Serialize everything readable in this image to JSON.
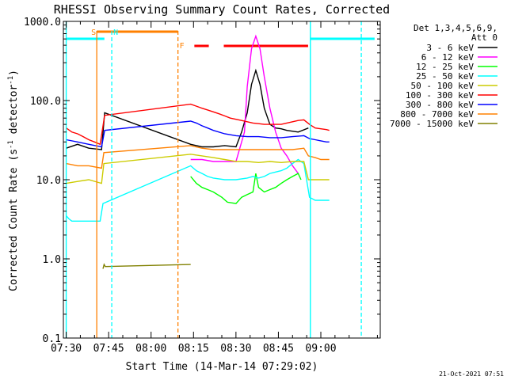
{
  "chart_data": {
    "type": "line",
    "title": "RHESSI Observing Summary Count Rates, Corrected",
    "xlabel": "Start Time (14-Mar-14 07:29:02)",
    "ylabel_main": "Corrected Count Rate (s",
    "ylabel_sup1": "-1",
    "ylabel_mid": " detector",
    "ylabel_sup2": "-1",
    "ylabel_end": ")",
    "footer": "21-Oct-2021 07:51",
    "y_scale": "log",
    "ylim": [
      0.1,
      1000
    ],
    "xlim_minutes": [
      -1,
      111
    ],
    "grid": false,
    "legend_placement": "right",
    "legend_header": [
      "Det 1,3,4,5,6,9,",
      "Att 0"
    ],
    "x_ticks": [
      {
        "m": 0,
        "label": "07:30"
      },
      {
        "m": 15,
        "label": "07:45"
      },
      {
        "m": 30,
        "label": "08:00"
      },
      {
        "m": 45,
        "label": "08:15"
      },
      {
        "m": 60,
        "label": "08:30"
      },
      {
        "m": 75,
        "label": "08:45"
      },
      {
        "m": 90,
        "label": "09:00"
      }
    ],
    "y_ticks": [
      {
        "v": 0.1,
        "label": "0.1"
      },
      {
        "v": 1,
        "label": "1.0"
      },
      {
        "v": 10,
        "label": "10.0"
      },
      {
        "v": 100,
        "label": "100.0"
      },
      {
        "v": 1000,
        "label": "1000.0"
      }
    ],
    "series": [
      {
        "name": "3 - 6 keV",
        "color": "#000000",
        "x": [
          0,
          4,
          8,
          12.5,
          13.6,
          44,
          48,
          52,
          56,
          60,
          62,
          64,
          65.5,
          67,
          68.5,
          70,
          72,
          74,
          76,
          78,
          82,
          85.6
        ],
        "y": [
          25,
          28,
          25,
          24,
          70,
          28,
          26,
          26,
          27,
          26,
          40,
          70,
          160,
          240,
          160,
          80,
          50,
          45,
          44,
          42,
          40,
          45
        ]
      },
      {
        "name": "6 - 12 keV",
        "color": "#ff00ff",
        "x": [
          44,
          48,
          52,
          56,
          60,
          63,
          64,
          65.5,
          67,
          68.5,
          70,
          72,
          74,
          76,
          78,
          80,
          82
        ],
        "y": [
          18,
          18,
          17,
          17,
          17,
          40,
          150,
          450,
          650,
          450,
          200,
          80,
          40,
          25,
          20,
          15,
          12
        ]
      },
      {
        "name": "12 - 25 keV",
        "color": "#00ff00",
        "x": [
          44,
          46,
          48,
          50,
          52,
          55,
          57,
          60,
          62,
          64,
          66,
          67,
          68,
          70,
          72,
          74,
          76,
          78,
          80,
          82,
          83
        ],
        "y": [
          11,
          9,
          8,
          7.5,
          7,
          6,
          5.2,
          5,
          6,
          6.5,
          7,
          12,
          8,
          7,
          7.5,
          8,
          9,
          10,
          11,
          12,
          10
        ]
      },
      {
        "name": "25 - 50 keV",
        "color": "#00ffff",
        "x": [
          0,
          1,
          2,
          4,
          6,
          8,
          10,
          12,
          13,
          44,
          46,
          48,
          50,
          52,
          56,
          60,
          64,
          66,
          68,
          70,
          72,
          74,
          76,
          78,
          80,
          82,
          84,
          86,
          88,
          90,
          92,
          93
        ],
        "y": [
          3.5,
          3.2,
          3.0,
          3.0,
          3.0,
          3.0,
          3.0,
          3.0,
          5,
          15,
          13,
          12,
          11,
          10.5,
          10,
          10,
          10.5,
          11,
          10.5,
          11,
          12,
          12.5,
          13,
          14,
          16,
          18,
          16,
          6,
          5.5,
          5.5,
          5.5,
          5.5
        ]
      },
      {
        "name": "50 - 100 keV",
        "color": "#cccc00",
        "x": [
          0,
          4,
          8,
          12.5,
          13.3,
          44,
          48,
          52,
          56,
          60,
          64,
          68,
          72,
          76,
          80,
          84,
          85.6,
          93
        ],
        "y": [
          9,
          9.5,
          10,
          9,
          16,
          21,
          20,
          19,
          18,
          17,
          17,
          16.5,
          17,
          16.5,
          17,
          17,
          10,
          10
        ]
      },
      {
        "name": "100 - 300 keV",
        "color": "#ff0000",
        "x": [
          0,
          2,
          4,
          6,
          8,
          10,
          12,
          13.6,
          44,
          46,
          48,
          50,
          52,
          54,
          56,
          58,
          60,
          62,
          64,
          66,
          68,
          70,
          72,
          74,
          76,
          78,
          80,
          82,
          84,
          86,
          88,
          90,
          92,
          93
        ],
        "y": [
          45,
          40,
          38,
          35,
          32,
          30,
          28,
          65,
          90,
          85,
          80,
          76,
          72,
          68,
          64,
          60,
          58,
          56,
          54,
          52,
          51,
          50,
          50,
          50,
          50,
          52,
          54,
          56,
          57,
          50,
          45,
          44,
          43,
          42
        ]
      },
      {
        "name": "300 - 800 keV",
        "color": "#0000ff",
        "x": [
          0,
          4,
          8,
          12.5,
          13.6,
          44,
          46,
          48,
          50,
          52,
          56,
          60,
          64,
          68,
          72,
          76,
          80,
          84,
          86,
          88,
          90,
          92,
          93
        ],
        "y": [
          32,
          30,
          28,
          26,
          42,
          55,
          52,
          48,
          45,
          42,
          38,
          36,
          35,
          35,
          34,
          34,
          35,
          36,
          33,
          32,
          31,
          30,
          30
        ]
      },
      {
        "name": "800 - 7000 keV",
        "color": "#ff8000",
        "x": [
          0,
          4,
          8,
          12.5,
          13.3,
          44,
          48,
          52,
          56,
          60,
          64,
          68,
          72,
          76,
          80,
          84,
          85.6,
          88,
          90,
          92,
          93
        ],
        "y": [
          16,
          15,
          15,
          14,
          22,
          27,
          25,
          24,
          24,
          24,
          24,
          24,
          24,
          24,
          24,
          25,
          20,
          19,
          18,
          18,
          18
        ]
      },
      {
        "name": "7000 - 15000 keV",
        "color": "#808000",
        "x": [
          13,
          13.4,
          13.8,
          44
        ],
        "y": [
          0.75,
          0.85,
          0.8,
          0.85
        ]
      }
    ],
    "annotations": [
      {
        "label": "S",
        "m": 10.8,
        "color": "#ff8000",
        "style": "solid"
      },
      {
        "label": "N",
        "m": 16.1,
        "color": "#00ffff",
        "style": "dashed"
      },
      {
        "label": "F",
        "m": 39.5,
        "color": "#ff8000",
        "style": "dashed"
      }
    ]
  }
}
